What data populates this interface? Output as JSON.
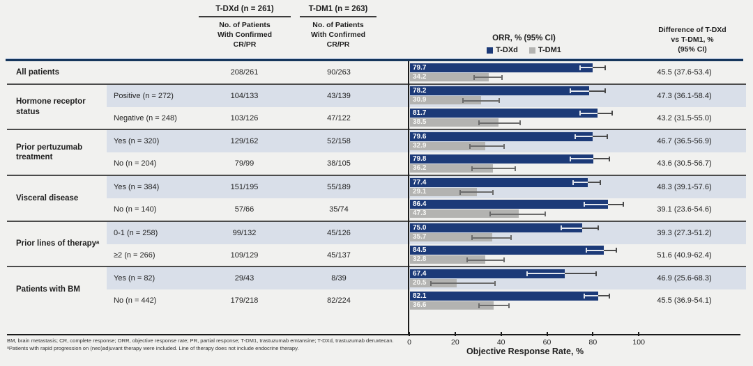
{
  "header": {
    "tdxd_col": {
      "title": "T-DXd (n = 261)",
      "subtitle": "No. of Patients\nWith Confirmed\nCR/PR"
    },
    "tdm1_col": {
      "title": "T-DM1 (n = 263)",
      "subtitle": "No. of Patients\nWith Confirmed\nCR/PR"
    },
    "orr_col": {
      "title": "ORR, % (95% CI)"
    },
    "diff_col": {
      "title": "Difference of T-DXd\nvs T-DM1, %\n(95% CI)"
    }
  },
  "colors": {
    "tdxd_bar": "#1c3a78",
    "tdm1_bar": "#b3b3b1",
    "tinted_row": "#d9dfe9",
    "header_rule": "#16365c"
  },
  "chart_data": {
    "type": "bar",
    "orientation": "horizontal",
    "series_names": [
      "T-DXd",
      "T-DM1"
    ],
    "xlabel": "Objective Response Rate, %",
    "xlim": [
      0,
      100
    ],
    "ticks": [
      0,
      20,
      40,
      60,
      80,
      100
    ],
    "groups": [
      {
        "label": "All patients",
        "rows": [
          {
            "subgroup": "",
            "tdxd_n": "208/261",
            "tdm1_n": "90/263",
            "orr_tdxd": "79.7",
            "ci_tdxd": [
              74,
              85
            ],
            "orr_tdm1": "34.2",
            "ci_tdm1": [
              28,
              40
            ],
            "diff": "45.5 (37.6-53.4)",
            "tinted": false
          }
        ]
      },
      {
        "label": "Hormone receptor status",
        "rows": [
          {
            "subgroup": "Positive (n = 272)",
            "tdxd_n": "104/133",
            "tdm1_n": "43/139",
            "orr_tdxd": "78.2",
            "ci_tdxd": [
              70,
              85
            ],
            "orr_tdm1": "30.9",
            "ci_tdm1": [
              23,
              39
            ],
            "diff": "47.3 (36.1-58.4)",
            "tinted": true
          },
          {
            "subgroup": "Negative (n = 248)",
            "tdxd_n": "103/126",
            "tdm1_n": "47/122",
            "orr_tdxd": "81.7",
            "ci_tdxd": [
              74,
              88
            ],
            "orr_tdm1": "38.5",
            "ci_tdm1": [
              30,
              48
            ],
            "diff": "43.2 (31.5-55.0)",
            "tinted": false
          }
        ]
      },
      {
        "label": "Prior pertuzumab treatment",
        "rows": [
          {
            "subgroup": "Yes (n = 320)",
            "tdxd_n": "129/162",
            "tdm1_n": "52/158",
            "orr_tdxd": "79.6",
            "ci_tdxd": [
              72,
              86
            ],
            "orr_tdm1": "32.9",
            "ci_tdm1": [
              26,
              41
            ],
            "diff": "46.7 (36.5-56.9)",
            "tinted": true
          },
          {
            "subgroup": "No (n = 204)",
            "tdxd_n": "79/99",
            "tdm1_n": "38/105",
            "orr_tdxd": "79.8",
            "ci_tdxd": [
              70,
              87
            ],
            "orr_tdm1": "36.2",
            "ci_tdm1": [
              27,
              46
            ],
            "diff": "43.6 (30.5-56.7)",
            "tinted": false
          }
        ]
      },
      {
        "label": "Visceral disease",
        "rows": [
          {
            "subgroup": "Yes (n = 384)",
            "tdxd_n": "151/195",
            "tdm1_n": "55/189",
            "orr_tdxd": "77.4",
            "ci_tdxd": [
              71,
              83
            ],
            "orr_tdm1": "29.1",
            "ci_tdm1": [
              22,
              36
            ],
            "diff": "48.3 (39.1-57.6)",
            "tinted": true
          },
          {
            "subgroup": "No (n = 140)",
            "tdxd_n": "57/66",
            "tdm1_n": "35/74",
            "orr_tdxd": "86.4",
            "ci_tdxd": [
              76,
              93
            ],
            "orr_tdm1": "47.3",
            "ci_tdm1": [
              35,
              59
            ],
            "diff": "39.1 (23.6-54.6)",
            "tinted": false
          }
        ]
      },
      {
        "label": "Prior lines of therapyᵃ",
        "rows": [
          {
            "subgroup": "0-1 (n = 258)",
            "tdxd_n": "99/132",
            "tdm1_n": "45/126",
            "orr_tdxd": "75.0",
            "ci_tdxd": [
              66,
              82
            ],
            "orr_tdm1": "35.7",
            "ci_tdm1": [
              27,
              44
            ],
            "diff": "39.3 (27.3-51.2)",
            "tinted": true
          },
          {
            "subgroup": "≥2 (n = 266)",
            "tdxd_n": "109/129",
            "tdm1_n": "45/137",
            "orr_tdxd": "84.5",
            "ci_tdxd": [
              77,
              90
            ],
            "orr_tdm1": "32.8",
            "ci_tdm1": [
              25,
              41
            ],
            "diff": "51.6 (40.9-62.4)",
            "tinted": false
          }
        ]
      },
      {
        "label": "Patients with BM",
        "rows": [
          {
            "subgroup": "Yes (n = 82)",
            "tdxd_n": "29/43",
            "tdm1_n": "8/39",
            "orr_tdxd": "67.4",
            "ci_tdxd": [
              51,
              81
            ],
            "orr_tdm1": "20.5",
            "ci_tdm1": [
              9,
              37
            ],
            "diff": "46.9 (25.6-68.3)",
            "tinted": true
          },
          {
            "subgroup": "No (n = 442)",
            "tdxd_n": "179/218",
            "tdm1_n": "82/224",
            "orr_tdxd": "82.1",
            "ci_tdxd": [
              76,
              87
            ],
            "orr_tdm1": "36.6",
            "ci_tdm1": [
              30,
              43
            ],
            "diff": "45.5 (36.9-54.1)",
            "tinted": false
          }
        ]
      }
    ]
  },
  "footnotes": [
    "BM, brain metastasis; CR, complete response; ORR, objective response rate; PR, partial response; T-DM1, trastuzumab emtansine; T-DXd, trastuzumab deruxtecan.",
    "ᵃPatients with rapid progression on (neo)adjuvant therapy were included. Line of therapy does not include endocrine therapy."
  ]
}
